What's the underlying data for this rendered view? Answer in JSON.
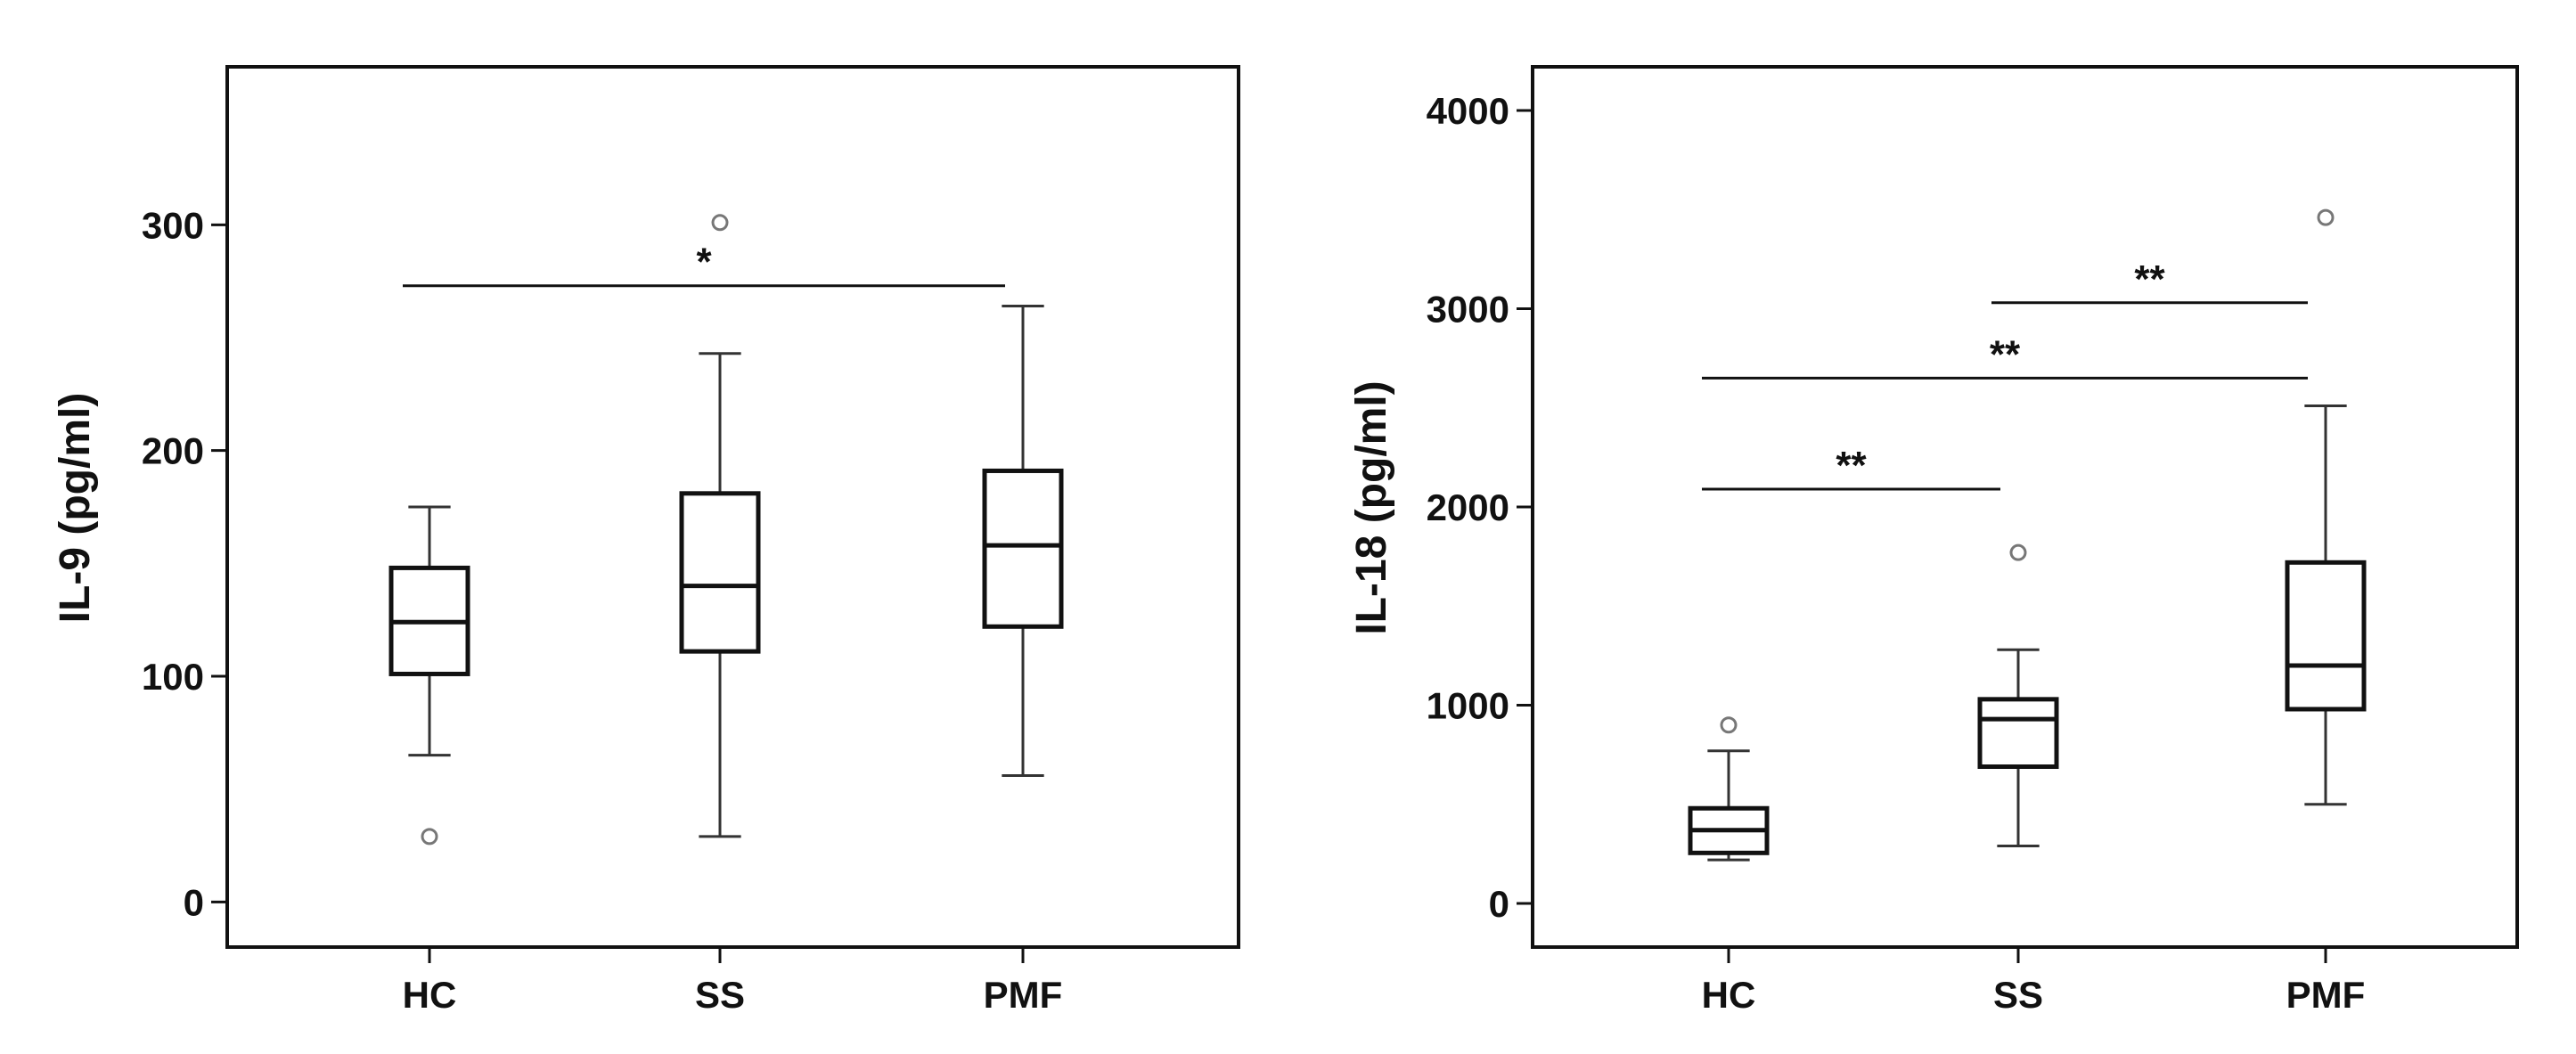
{
  "chart_data": [
    {
      "type": "box",
      "ylabel": "IL-9 (pg/ml)",
      "categories": [
        "HC",
        "SS",
        "PMF"
      ],
      "ylim": [
        -20,
        370
      ],
      "yticks": [
        "0",
        "100",
        "200",
        "300"
      ],
      "grid": false,
      "boxes": [
        {
          "category": "HC",
          "whisker_low": 65,
          "q1": 101,
          "median": 124,
          "q3": 148,
          "whisker_high": 175,
          "outliers": [
            29
          ]
        },
        {
          "category": "SS",
          "whisker_low": 29,
          "q1": 111,
          "median": 140,
          "q3": 181,
          "whisker_high": 243,
          "outliers": [
            301
          ]
        },
        {
          "category": "PMF",
          "whisker_low": 56,
          "q1": 122,
          "median": 158,
          "q3": 191,
          "whisker_high": 264,
          "outliers": []
        }
      ],
      "annotations": [
        {
          "from": "HC",
          "to": "PMF",
          "y": 273,
          "text": "*"
        }
      ]
    },
    {
      "type": "box",
      "ylabel": "IL-18 (pg/ml)",
      "categories": [
        "HC",
        "SS",
        "PMF"
      ],
      "ylim": [
        -220,
        4220
      ],
      "yticks": [
        "0",
        "1000",
        "2000",
        "3000",
        "4000"
      ],
      "grid": false,
      "boxes": [
        {
          "category": "HC",
          "whisker_low": 220,
          "q1": 255,
          "median": 370,
          "q3": 480,
          "whisker_high": 770,
          "outliers": [
            900
          ]
        },
        {
          "category": "SS",
          "whisker_low": 290,
          "q1": 690,
          "median": 930,
          "q3": 1030,
          "whisker_high": 1280,
          "outliers": [
            1770
          ]
        },
        {
          "category": "PMF",
          "whisker_low": 500,
          "q1": 980,
          "median": 1200,
          "q3": 1720,
          "whisker_high": 2510,
          "outliers": [
            3460
          ]
        }
      ],
      "annotations": [
        {
          "from": "HC",
          "to": "SS",
          "y": 2090,
          "text": "**"
        },
        {
          "from": "HC",
          "to": "PMF",
          "y": 2650,
          "text": "**"
        },
        {
          "from": "SS",
          "to": "PMF",
          "y": 3030,
          "text": "**"
        }
      ]
    }
  ]
}
